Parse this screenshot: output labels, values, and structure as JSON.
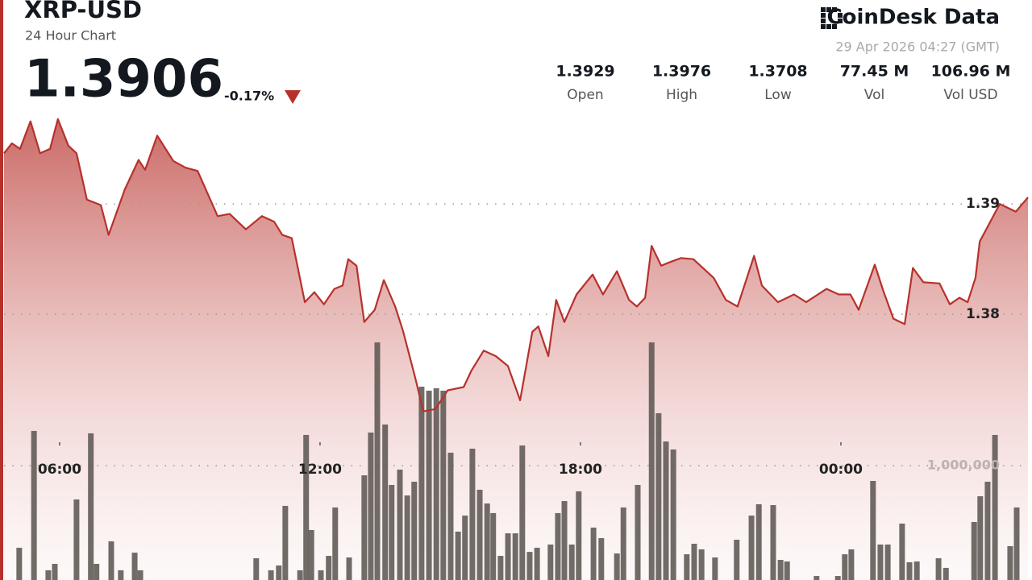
{
  "header": {
    "title": "XRP-USD",
    "subtitle": "24 Hour Chart",
    "price": "1.3906",
    "change": "-0.17%",
    "brand": "CoinDesk Data",
    "timestamp": "29 Apr 2026 04:27 (GMT)",
    "stats": [
      {
        "value": "1.3929",
        "label": "Open"
      },
      {
        "value": "1.3976",
        "label": "High"
      },
      {
        "value": "1.3708",
        "label": "Low"
      },
      {
        "value": "77.45 M",
        "label": "Vol"
      },
      {
        "value": "106.96 M",
        "label": "Vol USD"
      }
    ]
  },
  "chart_data": {
    "type": "line",
    "xlim": [
      4.72,
      28.31
    ],
    "xticks": [
      {
        "value": 6,
        "label": "06:00"
      },
      {
        "value": 12,
        "label": "12:00"
      },
      {
        "value": 18,
        "label": "18:00"
      },
      {
        "value": 24,
        "label": "00:00"
      }
    ],
    "ylim": [
      1.3559,
      1.4085
    ],
    "yticks": [
      1.38,
      1.39
    ],
    "y2lim": [
      0,
      5070000
    ],
    "y2ticks": [
      {
        "value": 1000000,
        "label": "1,000,000"
      }
    ],
    "grid": true,
    "series": [
      {
        "color": "#b7312c",
        "x": [
          4.72,
          4.9,
          5.09,
          5.33,
          5.55,
          5.78,
          5.96,
          6.2,
          6.39,
          6.63,
          6.95,
          7.13,
          7.5,
          7.82,
          7.97,
          8.25,
          8.62,
          8.9,
          9.18,
          9.64,
          9.92,
          10.29,
          10.66,
          10.94,
          11.13,
          11.35,
          11.65,
          11.87,
          12.09,
          12.33,
          12.52,
          12.65,
          12.84,
          13.02,
          13.26,
          13.47,
          13.73,
          13.91,
          14.19,
          14.38,
          14.66,
          14.94,
          15.31,
          15.49,
          15.77,
          16.05,
          16.33,
          16.61,
          16.89,
          17.03,
          17.26,
          17.44,
          17.63,
          17.91,
          18.28,
          18.52,
          18.84,
          19.12,
          19.3,
          19.49,
          19.64,
          19.86,
          20.04,
          20.32,
          20.6,
          21.07,
          21.35,
          21.62,
          22.0,
          22.18,
          22.55,
          22.92,
          23.2,
          23.67,
          23.95,
          24.22,
          24.41,
          24.78,
          24.97,
          25.21,
          25.47,
          25.66,
          25.9,
          26.27,
          26.51,
          26.73,
          26.92,
          27.1,
          27.2,
          27.66,
          28.03,
          28.31
        ],
        "values": [
          1.3946,
          1.3955,
          1.395,
          1.3975,
          1.3946,
          1.395,
          1.3977,
          1.3953,
          1.3946,
          1.3904,
          1.3899,
          1.3872,
          1.3913,
          1.394,
          1.3931,
          1.3962,
          1.3939,
          1.3933,
          1.393,
          1.3889,
          1.3891,
          1.3877,
          1.3889,
          1.3884,
          1.3872,
          1.3869,
          1.3811,
          1.382,
          1.3809,
          1.3823,
          1.3826,
          1.385,
          1.3844,
          1.3793,
          1.3804,
          1.3831,
          1.3807,
          1.3785,
          1.3743,
          1.3712,
          1.3714,
          1.3731,
          1.3734,
          1.3749,
          1.3767,
          1.3762,
          1.3753,
          1.3722,
          1.3784,
          1.3789,
          1.3762,
          1.3813,
          1.3793,
          1.3818,
          1.3836,
          1.3818,
          1.3839,
          1.3813,
          1.3807,
          1.3815,
          1.3862,
          1.3844,
          1.3847,
          1.3851,
          1.385,
          1.3833,
          1.3813,
          1.3807,
          1.3853,
          1.3826,
          1.3811,
          1.3818,
          1.3811,
          1.3823,
          1.3818,
          1.3818,
          1.3804,
          1.3845,
          1.3822,
          1.3796,
          1.3791,
          1.3842,
          1.3829,
          1.3828,
          1.3809,
          1.3815,
          1.3811,
          1.3833,
          1.3866,
          1.39,
          1.3893,
          1.3906
        ]
      },
      {
        "type": "bar",
        "axis": "y2",
        "color": "#5d5853",
        "x": [
          5.07,
          5.41,
          5.74,
          5.89,
          6.39,
          6.72,
          6.85,
          7.19,
          7.41,
          7.73,
          7.86,
          10.53,
          10.87,
          11.05,
          11.2,
          11.54,
          11.68,
          11.8,
          12.02,
          12.2,
          12.35,
          12.67,
          13.02,
          13.17,
          13.32,
          13.5,
          13.65,
          13.84,
          14.01,
          14.17,
          14.34,
          14.51,
          14.68,
          14.84,
          15.01,
          15.18,
          15.34,
          15.51,
          15.68,
          15.85,
          15.99,
          16.16,
          16.33,
          16.5,
          16.66,
          16.83,
          17.0,
          17.31,
          17.48,
          17.63,
          17.8,
          17.96,
          18.3,
          18.48,
          18.84,
          18.99,
          19.32,
          19.64,
          19.8,
          19.97,
          20.14,
          20.45,
          20.62,
          20.79,
          21.1,
          21.6,
          21.94,
          22.11,
          22.44,
          22.61,
          22.76,
          23.44,
          23.93,
          24.09,
          24.24,
          24.74,
          24.91,
          25.08,
          25.41,
          25.58,
          25.75,
          26.25,
          26.42,
          27.07,
          27.21,
          27.38,
          27.55,
          27.9,
          28.05
        ],
        "values": [
          282000,
          1303000,
          85000,
          141000,
          704000,
          1282000,
          141000,
          338000,
          85000,
          239000,
          85000,
          190000,
          85000,
          127000,
          648000,
          85000,
          1268000,
          437000,
          85000,
          211000,
          634000,
          197000,
          915000,
          1289000,
          2077000,
          1359000,
          831000,
          965000,
          739000,
          859000,
          1690000,
          1655000,
          1676000,
          1655000,
          1113000,
          423000,
          563000,
          1148000,
          789000,
          669000,
          585000,
          211000,
          408000,
          408000,
          1176000,
          246000,
          282000,
          310000,
          585000,
          690000,
          310000,
          775000,
          458000,
          366000,
          232000,
          634000,
          831000,
          2077000,
          1458000,
          1211000,
          1141000,
          225000,
          317000,
          268000,
          197000,
          352000,
          563000,
          662000,
          655000,
          176000,
          162000,
          35000,
          35000,
          225000,
          268000,
          866000,
          310000,
          310000,
          493000,
          155000,
          162000,
          190000,
          106000,
          507000,
          732000,
          859000,
          1268000,
          296000,
          634000
        ]
      }
    ]
  }
}
